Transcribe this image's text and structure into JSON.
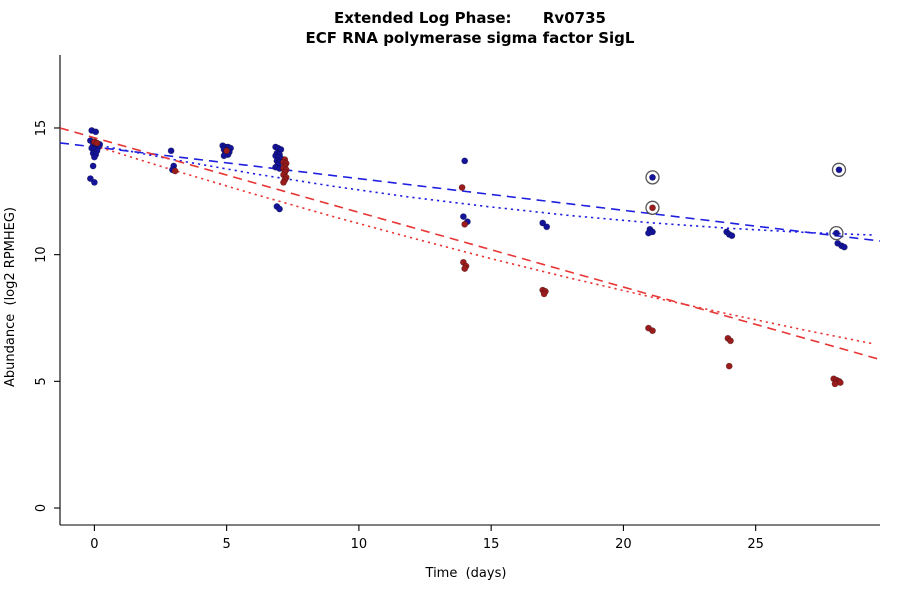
{
  "chart_data": {
    "type": "scatter",
    "title": "Extended Log Phase:      Rv0735",
    "subtitle": "ECF RNA polymerase sigma factor SigL",
    "xlabel": "Time  (days)",
    "ylabel": "Abundance  (log2 RPMHEG)",
    "xlim": [
      -1.3,
      29.7
    ],
    "ylim": [
      -0.67,
      17.88
    ],
    "xticks": [
      0,
      5,
      10,
      15,
      20,
      25
    ],
    "yticks": [
      0,
      5,
      10,
      15
    ],
    "grid": false,
    "legend": "none",
    "point_colors": {
      "blue": "#14149B",
      "red": "#9B1C1C"
    },
    "line_colors": {
      "blue": "#1F1FE0",
      "red": "#E83535"
    },
    "series": [
      {
        "name": "blue-condition",
        "color": "#14149B",
        "points": [
          [
            -0.1,
            14.9
          ],
          [
            0.05,
            14.85
          ],
          [
            -0.15,
            14.5
          ],
          [
            0.0,
            14.45
          ],
          [
            0.1,
            14.4
          ],
          [
            0.2,
            14.35
          ],
          [
            -0.05,
            14.3
          ],
          [
            0.05,
            14.3
          ],
          [
            0.15,
            14.25
          ],
          [
            -0.1,
            14.2
          ],
          [
            0.0,
            14.15
          ],
          [
            0.1,
            14.1
          ],
          [
            -0.05,
            14.0
          ],
          [
            0.05,
            13.95
          ],
          [
            0.0,
            13.85
          ],
          [
            -0.05,
            13.5
          ],
          [
            -0.15,
            13.0
          ],
          [
            0.0,
            12.85
          ],
          [
            2.9,
            14.1
          ],
          [
            3.0,
            13.5
          ],
          [
            2.95,
            13.35
          ],
          [
            4.85,
            14.3
          ],
          [
            4.95,
            14.25
          ],
          [
            5.05,
            14.25
          ],
          [
            5.15,
            14.2
          ],
          [
            4.9,
            14.15
          ],
          [
            5.0,
            14.1
          ],
          [
            5.1,
            14.05
          ],
          [
            4.95,
            14.0
          ],
          [
            5.05,
            13.95
          ],
          [
            4.9,
            13.9
          ],
          [
            6.85,
            14.25
          ],
          [
            6.95,
            14.2
          ],
          [
            7.05,
            14.15
          ],
          [
            6.9,
            14.0
          ],
          [
            7.0,
            13.95
          ],
          [
            6.85,
            13.9
          ],
          [
            6.95,
            13.85
          ],
          [
            7.05,
            13.8
          ],
          [
            6.9,
            13.7
          ],
          [
            7.0,
            13.65
          ],
          [
            6.95,
            13.55
          ],
          [
            6.85,
            13.45
          ],
          [
            7.0,
            13.4
          ],
          [
            6.9,
            11.9
          ],
          [
            7.0,
            11.8
          ],
          [
            14.0,
            13.7
          ],
          [
            13.95,
            11.5
          ],
          [
            14.1,
            11.3
          ],
          [
            16.95,
            11.25
          ],
          [
            17.1,
            11.1
          ],
          [
            21.1,
            13.05
          ],
          [
            21.0,
            11.0
          ],
          [
            21.1,
            10.9
          ],
          [
            20.95,
            10.85
          ],
          [
            23.9,
            10.9
          ],
          [
            24.0,
            10.8
          ],
          [
            24.1,
            10.75
          ],
          [
            28.15,
            13.35
          ],
          [
            28.05,
            10.85
          ],
          [
            28.1,
            10.45
          ],
          [
            28.25,
            10.35
          ],
          [
            28.35,
            10.3
          ]
        ]
      },
      {
        "name": "red-condition",
        "color": "#9B1C1C",
        "points": [
          [
            0.0,
            14.45
          ],
          [
            0.1,
            14.4
          ],
          [
            3.05,
            13.3
          ],
          [
            5.0,
            14.1
          ],
          [
            7.2,
            13.75
          ],
          [
            7.15,
            13.65
          ],
          [
            7.25,
            13.6
          ],
          [
            7.2,
            13.5
          ],
          [
            7.15,
            13.4
          ],
          [
            7.25,
            13.35
          ],
          [
            7.2,
            13.25
          ],
          [
            7.15,
            13.15
          ],
          [
            7.25,
            13.05
          ],
          [
            7.2,
            12.95
          ],
          [
            7.15,
            12.85
          ],
          [
            13.9,
            12.65
          ],
          [
            14.0,
            11.2
          ],
          [
            13.95,
            9.7
          ],
          [
            14.05,
            9.55
          ],
          [
            14.0,
            9.45
          ],
          [
            16.95,
            8.6
          ],
          [
            17.05,
            8.55
          ],
          [
            17.0,
            8.45
          ],
          [
            21.1,
            11.85
          ],
          [
            20.95,
            7.1
          ],
          [
            21.1,
            7.0
          ],
          [
            23.95,
            6.7
          ],
          [
            24.05,
            6.6
          ],
          [
            24.0,
            5.6
          ],
          [
            27.95,
            5.1
          ],
          [
            28.05,
            5.05
          ],
          [
            28.15,
            5.0
          ],
          [
            28.2,
            4.95
          ],
          [
            28.0,
            4.9
          ]
        ]
      }
    ],
    "circled_points": [
      [
        21.1,
        13.05
      ],
      [
        21.1,
        11.85
      ],
      [
        28.15,
        13.35
      ],
      [
        28.05,
        10.85
      ]
    ],
    "trend_lines": [
      {
        "name": "blue-linear-fit",
        "color": "#1F1FE0",
        "style": "dashed",
        "points": [
          [
            -1.3,
            14.41
          ],
          [
            29.7,
            10.54
          ]
        ]
      },
      {
        "name": "blue-curved-fit",
        "color": "#1F1FE0",
        "style": "dotted",
        "points": [
          [
            0,
            14.35
          ],
          [
            3,
            13.75
          ],
          [
            6,
            13.2
          ],
          [
            9,
            12.7
          ],
          [
            12,
            12.26
          ],
          [
            15,
            11.88
          ],
          [
            18,
            11.54
          ],
          [
            21,
            11.26
          ],
          [
            24,
            11.04
          ],
          [
            27,
            10.87
          ],
          [
            29.5,
            10.77
          ]
        ]
      },
      {
        "name": "red-linear-fit",
        "color": "#E83535",
        "style": "dashed",
        "points": [
          [
            -1.3,
            15.0
          ],
          [
            29.7,
            5.86
          ]
        ]
      },
      {
        "name": "red-curved-fit",
        "color": "#E83535",
        "style": "dotted",
        "points": [
          [
            0,
            14.3
          ],
          [
            3,
            13.33
          ],
          [
            6,
            12.4
          ],
          [
            9,
            11.51
          ],
          [
            12,
            10.66
          ],
          [
            15,
            9.84
          ],
          [
            18,
            9.07
          ],
          [
            21,
            8.34
          ],
          [
            24,
            7.65
          ],
          [
            27,
            6.99
          ],
          [
            29.5,
            6.47
          ]
        ]
      }
    ]
  }
}
